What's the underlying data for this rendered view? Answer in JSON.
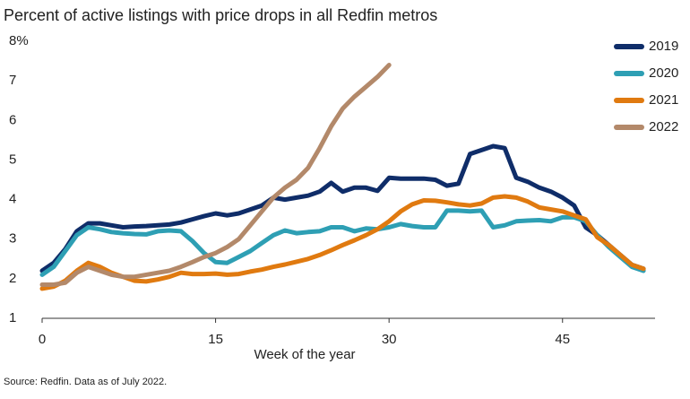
{
  "chart_data": {
    "type": "line",
    "title": "Percent of active listings with price drops in all Redfin metros",
    "x_label": "Week of the year",
    "source": "Source: Redfin. Data as of July 2022.",
    "x": [
      0,
      1,
      2,
      3,
      4,
      5,
      6,
      7,
      8,
      9,
      10,
      11,
      12,
      13,
      14,
      15,
      16,
      17,
      18,
      19,
      20,
      21,
      22,
      23,
      24,
      25,
      26,
      27,
      28,
      29,
      30,
      31,
      32,
      33,
      34,
      35,
      36,
      37,
      38,
      39,
      40,
      41,
      42,
      43,
      44,
      45,
      46,
      47,
      48,
      49,
      50,
      51,
      52
    ],
    "xlim": [
      0,
      53
    ],
    "xticks": [
      0,
      15,
      30,
      45
    ],
    "ylim": [
      1,
      8
    ],
    "yticks": [
      1,
      2,
      3,
      4,
      5,
      6,
      7,
      {
        "value": 8,
        "label": "8%"
      }
    ],
    "series": [
      {
        "name": "2019",
        "color": "#0f2d69",
        "values": [
          2.2,
          2.4,
          2.75,
          3.2,
          3.4,
          3.4,
          3.35,
          3.3,
          3.32,
          3.33,
          3.35,
          3.37,
          3.42,
          3.5,
          3.58,
          3.65,
          3.6,
          3.65,
          3.75,
          3.85,
          4.05,
          4.0,
          4.05,
          4.1,
          4.2,
          4.42,
          4.2,
          4.3,
          4.3,
          4.22,
          4.55,
          4.53,
          4.53,
          4.53,
          4.5,
          4.35,
          4.4,
          5.15,
          5.25,
          5.35,
          5.3,
          4.55,
          4.45,
          4.3,
          4.2,
          4.05,
          3.85,
          3.3,
          3.1,
          2.85,
          2.6,
          2.35,
          2.25
        ]
      },
      {
        "name": "2020",
        "color": "#2e9fb4",
        "values": [
          2.1,
          2.3,
          2.7,
          3.1,
          3.3,
          3.25,
          3.18,
          3.15,
          3.13,
          3.12,
          3.2,
          3.22,
          3.2,
          2.95,
          2.65,
          2.42,
          2.4,
          2.55,
          2.7,
          2.9,
          3.1,
          3.22,
          3.15,
          3.18,
          3.2,
          3.3,
          3.3,
          3.2,
          3.27,
          3.25,
          3.3,
          3.38,
          3.33,
          3.3,
          3.3,
          3.72,
          3.72,
          3.7,
          3.72,
          3.3,
          3.35,
          3.45,
          3.47,
          3.48,
          3.45,
          3.55,
          3.55,
          3.45,
          3.1,
          2.8,
          2.55,
          2.3,
          2.2
        ]
      },
      {
        "name": "2021",
        "color": "#e07a10",
        "values": [
          1.75,
          1.8,
          1.95,
          2.2,
          2.4,
          2.3,
          2.15,
          2.05,
          1.95,
          1.93,
          1.98,
          2.05,
          2.15,
          2.12,
          2.12,
          2.13,
          2.1,
          2.12,
          2.18,
          2.23,
          2.3,
          2.36,
          2.43,
          2.5,
          2.6,
          2.72,
          2.85,
          2.97,
          3.1,
          3.25,
          3.45,
          3.7,
          3.88,
          3.98,
          3.97,
          3.93,
          3.88,
          3.85,
          3.9,
          4.05,
          4.08,
          4.05,
          3.95,
          3.8,
          3.75,
          3.7,
          3.6,
          3.5,
          3.05,
          2.85,
          2.6,
          2.35,
          2.25
        ]
      },
      {
        "name": "2022",
        "color": "#b3896a",
        "values": [
          1.85,
          1.85,
          1.9,
          2.15,
          2.3,
          2.2,
          2.1,
          2.05,
          2.05,
          2.1,
          2.15,
          2.2,
          2.3,
          2.42,
          2.55,
          2.65,
          2.8,
          3.0,
          3.35,
          3.7,
          4.05,
          4.3,
          4.5,
          4.8,
          5.3,
          5.85,
          6.3,
          6.6,
          6.85,
          7.1,
          7.4,
          null,
          null,
          null,
          null,
          null,
          null,
          null,
          null,
          null,
          null,
          null,
          null,
          null,
          null,
          null,
          null,
          null,
          null,
          null,
          null,
          null,
          null
        ]
      }
    ]
  }
}
